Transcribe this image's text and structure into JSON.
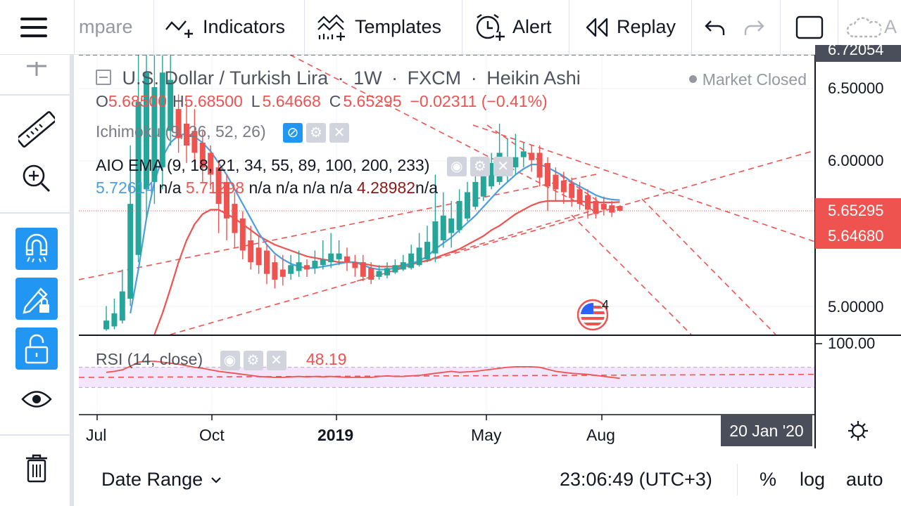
{
  "toolbar": {
    "compare_label": "mpare",
    "indicators_label": "Indicators",
    "templates_label": "Templates",
    "alert_label": "Alert",
    "replay_label": "Replay",
    "cut_label": "A"
  },
  "legend": {
    "symbol": "U.S. Dollar / Turkish Lira",
    "interval": "1W",
    "exchange": "FXCM",
    "chart_style": "Heikin Ashi",
    "market_status": "Market Closed",
    "o_label": "O",
    "o_value": "5.68500",
    "h_label": "H",
    "h_value": "5.68500",
    "l_label": "L",
    "l_value": "5.64668",
    "c_label": "C",
    "c_value": "5.65295",
    "change": "−0.02311 (−0.41%)",
    "ichimoku": "Ichimoku (9, 26, 52, 26)",
    "ema_title": "AIO EMA (9, 18, 21, 34, 55, 89, 100, 200, 233)",
    "ema_v1": "5.72614",
    "ema_na1": "n/a",
    "ema_v2": "5.71298",
    "ema_na_group": "n/a n/a n/a n/a",
    "ema_v3": "4.28982",
    "ema_na2": "n/a"
  },
  "price_axis": {
    "top_partial": "6.72054",
    "ticks": [
      "6.50000",
      "6.00000",
      "5.00000"
    ],
    "last_price": "5.65295",
    "ema_price": "5.64680",
    "rsi_top": "100.00"
  },
  "time_axis": {
    "labels": [
      "Jul",
      "Oct",
      "2019",
      "May",
      "Aug"
    ],
    "cursor_date": "20 Jan '20"
  },
  "rsi": {
    "title": "RSI (14, close)",
    "value": "48.19"
  },
  "events": {
    "badge_count": "4"
  },
  "bottombar": {
    "date_range": "Date Range",
    "time": "23:06:49 (UTC+3)",
    "percent": "%",
    "log": "log",
    "auto": "auto"
  },
  "colors": {
    "up": "#26a69a",
    "down": "#ef5350",
    "ema_fast": "#4c9ee0",
    "ema_slow": "#ef5350",
    "accent": "#2196f3"
  },
  "chart_data": {
    "type": "candlestick",
    "title": "U.S. Dollar / Turkish Lira · 1W · FXCM · Heikin Ashi",
    "ylim": [
      4.8,
      6.72
    ],
    "candles": [
      {
        "o": 4.84,
        "c": 4.9,
        "h": 5.0,
        "l": 4.83
      },
      {
        "o": 4.86,
        "c": 4.95,
        "h": 5.05,
        "l": 4.84
      },
      {
        "o": 4.9,
        "c": 5.1,
        "h": 5.25,
        "l": 4.88
      },
      {
        "o": 5.05,
        "c": 5.7,
        "h": 6.1,
        "l": 5.0
      },
      {
        "o": 5.35,
        "c": 6.4,
        "h": 6.72,
        "l": 5.3
      },
      {
        "o": 5.8,
        "c": 6.6,
        "h": 6.72,
        "l": 5.6
      },
      {
        "o": 5.85,
        "c": 6.5,
        "h": 6.72,
        "l": 5.7
      },
      {
        "o": 5.95,
        "c": 6.6,
        "h": 6.72,
        "l": 5.8
      },
      {
        "o": 6.2,
        "c": 6.55,
        "h": 6.72,
        "l": 6.1
      },
      {
        "o": 6.35,
        "c": 6.15,
        "h": 6.45,
        "l": 6.05
      },
      {
        "o": 6.25,
        "c": 6.1,
        "h": 6.4,
        "l": 5.98
      },
      {
        "o": 6.2,
        "c": 6.05,
        "h": 6.35,
        "l": 5.95
      },
      {
        "o": 6.12,
        "c": 5.95,
        "h": 6.2,
        "l": 5.85
      },
      {
        "o": 6.05,
        "c": 5.9,
        "h": 6.1,
        "l": 5.8
      },
      {
        "o": 5.95,
        "c": 5.7,
        "h": 6.0,
        "l": 5.5
      },
      {
        "o": 5.85,
        "c": 5.6,
        "h": 5.9,
        "l": 5.45
      },
      {
        "o": 5.7,
        "c": 5.5,
        "h": 5.78,
        "l": 5.4
      },
      {
        "o": 5.6,
        "c": 5.38,
        "h": 5.65,
        "l": 5.32
      },
      {
        "o": 5.45,
        "c": 5.3,
        "h": 5.55,
        "l": 5.25
      },
      {
        "o": 5.4,
        "c": 5.28,
        "h": 5.48,
        "l": 5.22
      },
      {
        "o": 5.38,
        "c": 5.22,
        "h": 5.42,
        "l": 5.15
      },
      {
        "o": 5.3,
        "c": 5.18,
        "h": 5.35,
        "l": 5.12
      },
      {
        "o": 5.25,
        "c": 5.2,
        "h": 5.35,
        "l": 5.14
      },
      {
        "o": 5.22,
        "c": 5.28,
        "h": 5.35,
        "l": 5.18
      },
      {
        "o": 5.24,
        "c": 5.3,
        "h": 5.38,
        "l": 5.2
      },
      {
        "o": 5.28,
        "c": 5.25,
        "h": 5.32,
        "l": 5.2
      },
      {
        "o": 5.26,
        "c": 5.31,
        "h": 5.38,
        "l": 5.22
      },
      {
        "o": 5.28,
        "c": 5.32,
        "h": 5.45,
        "l": 5.25
      },
      {
        "o": 5.3,
        "c": 5.36,
        "h": 5.5,
        "l": 5.26
      },
      {
        "o": 5.32,
        "c": 5.36,
        "h": 5.45,
        "l": 5.28
      },
      {
        "o": 5.34,
        "c": 5.3,
        "h": 5.4,
        "l": 5.24
      },
      {
        "o": 5.3,
        "c": 5.26,
        "h": 5.35,
        "l": 5.2
      },
      {
        "o": 5.3,
        "c": 5.2,
        "h": 5.35,
        "l": 5.17
      },
      {
        "o": 5.26,
        "c": 5.18,
        "h": 5.3,
        "l": 5.15
      },
      {
        "o": 5.2,
        "c": 5.24,
        "h": 5.28,
        "l": 5.18
      },
      {
        "o": 5.21,
        "c": 5.26,
        "h": 5.3,
        "l": 5.19
      },
      {
        "o": 5.23,
        "c": 5.28,
        "h": 5.32,
        "l": 5.22
      },
      {
        "o": 5.25,
        "c": 5.3,
        "h": 5.35,
        "l": 5.24
      },
      {
        "o": 5.26,
        "c": 5.36,
        "h": 5.42,
        "l": 5.25
      },
      {
        "o": 5.28,
        "c": 5.4,
        "h": 5.5,
        "l": 5.27
      },
      {
        "o": 5.32,
        "c": 5.44,
        "h": 5.55,
        "l": 5.3
      },
      {
        "o": 5.36,
        "c": 5.58,
        "h": 5.9,
        "l": 5.3
      },
      {
        "o": 5.45,
        "c": 5.62,
        "h": 5.78,
        "l": 5.4
      },
      {
        "o": 5.5,
        "c": 5.6,
        "h": 5.72,
        "l": 5.4
      },
      {
        "o": 5.52,
        "c": 5.72,
        "h": 5.8,
        "l": 5.5
      },
      {
        "o": 5.6,
        "c": 5.78,
        "h": 5.85,
        "l": 5.58
      },
      {
        "o": 5.68,
        "c": 5.85,
        "h": 5.92,
        "l": 5.66
      },
      {
        "o": 5.75,
        "c": 5.95,
        "h": 6.02,
        "l": 5.72
      },
      {
        "o": 5.82,
        "c": 5.98,
        "h": 6.05,
        "l": 5.8
      },
      {
        "o": 5.85,
        "c": 6.05,
        "h": 6.25,
        "l": 5.83
      },
      {
        "o": 5.9,
        "c": 6.0,
        "h": 6.15,
        "l": 5.85
      },
      {
        "o": 5.95,
        "c": 6.02,
        "h": 6.18,
        "l": 5.9
      },
      {
        "o": 6.02,
        "c": 6.06,
        "h": 6.12,
        "l": 5.95
      },
      {
        "o": 6.05,
        "c": 6.0,
        "h": 6.1,
        "l": 5.92
      },
      {
        "o": 6.05,
        "c": 5.88,
        "h": 6.1,
        "l": 5.82
      },
      {
        "o": 5.98,
        "c": 5.82,
        "h": 6.02,
        "l": 5.65
      },
      {
        "o": 5.9,
        "c": 5.8,
        "h": 5.95,
        "l": 5.72
      },
      {
        "o": 5.86,
        "c": 5.78,
        "h": 5.92,
        "l": 5.7
      },
      {
        "o": 5.84,
        "c": 5.74,
        "h": 5.88,
        "l": 5.68
      },
      {
        "o": 5.8,
        "c": 5.7,
        "h": 5.85,
        "l": 5.66
      },
      {
        "o": 5.76,
        "c": 5.66,
        "h": 5.8,
        "l": 5.6
      },
      {
        "o": 5.72,
        "c": 5.63,
        "h": 5.75,
        "l": 5.6
      },
      {
        "o": 5.7,
        "c": 5.66,
        "h": 5.75,
        "l": 5.62
      },
      {
        "o": 5.69,
        "c": 5.64,
        "h": 5.72,
        "l": 5.61
      },
      {
        "o": 5.685,
        "c": 5.653,
        "h": 5.685,
        "l": 5.647
      }
    ],
    "ema_fast": [
      null,
      null,
      null,
      4.95,
      5.25,
      5.6,
      5.85,
      6.02,
      6.12,
      6.17,
      6.18,
      6.16,
      6.12,
      6.06,
      5.98,
      5.9,
      5.8,
      5.7,
      5.6,
      5.5,
      5.42,
      5.36,
      5.32,
      5.29,
      5.27,
      5.26,
      5.26,
      5.27,
      5.28,
      5.29,
      5.3,
      5.3,
      5.28,
      5.26,
      5.25,
      5.25,
      5.26,
      5.27,
      5.29,
      5.31,
      5.34,
      5.39,
      5.43,
      5.47,
      5.52,
      5.57,
      5.62,
      5.68,
      5.74,
      5.8,
      5.85,
      5.9,
      5.94,
      5.97,
      5.97,
      5.95,
      5.92,
      5.89,
      5.85,
      5.82,
      5.79,
      5.76,
      5.74,
      5.73,
      5.726
    ],
    "ema_slow": [
      null,
      null,
      null,
      null,
      null,
      null,
      4.8,
      4.95,
      5.12,
      5.3,
      5.45,
      5.56,
      5.63,
      5.66,
      5.66,
      5.63,
      5.6,
      5.56,
      5.52,
      5.48,
      5.45,
      5.42,
      5.4,
      5.38,
      5.36,
      5.34,
      5.33,
      5.32,
      5.31,
      5.3,
      5.3,
      5.3,
      5.29,
      5.28,
      5.27,
      5.27,
      5.27,
      5.28,
      5.29,
      5.3,
      5.31,
      5.33,
      5.35,
      5.37,
      5.39,
      5.42,
      5.45,
      5.48,
      5.52,
      5.55,
      5.59,
      5.63,
      5.66,
      5.69,
      5.71,
      5.72,
      5.72,
      5.72,
      5.72,
      5.72,
      5.71,
      5.71,
      5.71,
      5.71,
      5.713
    ],
    "rsi": [
      60,
      62,
      65,
      72,
      80,
      82,
      82,
      80,
      78,
      76,
      73,
      70,
      68,
      65,
      62,
      60,
      58,
      56,
      54,
      52,
      51,
      50,
      50,
      51,
      52,
      51,
      52,
      51,
      52,
      51,
      50,
      50,
      50,
      50,
      52,
      53,
      52,
      52,
      53,
      54,
      56,
      58,
      60,
      62,
      60,
      61,
      62,
      64,
      66,
      68,
      70,
      71,
      71,
      71,
      70,
      66,
      62,
      60,
      58,
      57,
      56,
      54,
      52,
      50,
      48.19
    ]
  }
}
